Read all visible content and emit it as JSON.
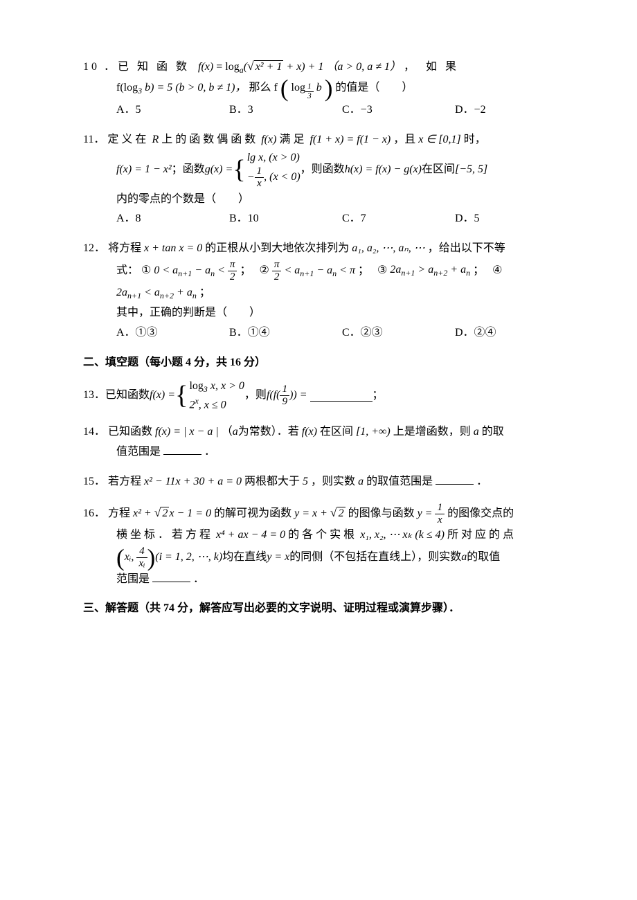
{
  "q10": {
    "num": "10",
    "pre": "．",
    "lead": "已知函数",
    "func_lhs": "f(x)",
    "func_rhs_pre": "= log",
    "log_base": "a",
    "arg_open": "(",
    "sqrt_inner": "x² + 1",
    "after_sqrt": " + x) + 1",
    "cond1": "（a > 0, a ≠ 1）",
    "tail1": "，",
    "lead2": "如果",
    "line2_pre": "f(log",
    "line2_base": "3",
    "line2_arg": " b) = 5 (b > 0, b ≠ 1)，",
    "line2_mid": "那么 f",
    "big_open": "(",
    "inner_log": "log",
    "inner_base_n": "1",
    "inner_base_d": "3",
    "inner_arg": " b",
    "big_close": ")",
    "line2_tail": "的值是（　　）",
    "optA": "A．5",
    "optB": "B．3",
    "optC": "C．−3",
    "optD": "D．−2"
  },
  "q11": {
    "num": "11．",
    "t1": "定义在",
    "t_R": "R",
    "t2": "上的函数偶函数",
    "t_fx": "f(x)",
    "t3": "满足",
    "t_eq": "f(1 + x) = f(1 − x)",
    "t4": "，且",
    "t_in": "x ∈ [0,1]",
    "t5": "时，",
    "l2_a": "f(x) = 1 − x²",
    "l2_b": "；函数",
    "l2_g": "g(x) = ",
    "case1": "lg x, (x > 0)",
    "case2_pre": "−",
    "case2_frac_n": "1",
    "case2_frac_d": "x",
    "case2_post": ", (x < 0)",
    "l2_c": "，则函数",
    "l2_h": "h(x) = f(x) − g(x)",
    "l2_d": "在区间",
    "l2_int": "[−5, 5]",
    "l3": "内的零点的个数是（　　）",
    "optA": "A．8",
    "optB": "B．10",
    "optC": "C．7",
    "optD": "D．5"
  },
  "q12": {
    "num": "12．",
    "t1": "将方程",
    "eq": "x + tan x = 0",
    "t2": "的正根从小到大地依次排列为",
    "seq": "a₁, a₂, ⋯, aₙ, ⋯",
    "t3": "，给出以下不等",
    "l2_a": "式：",
    "i1_lab": "①",
    "i1_body_pre": "0 < a",
    "i1_sub1": "n+1",
    "i1_mid": " − a",
    "i1_sub2": "n",
    "i1_lt": " < ",
    "pi_n": "π",
    "two": "2",
    "sep": "；",
    "i2_lab": "②",
    "i2_body_mid": " < a",
    "i2_sub1": "n+1",
    "i2_mid2": " − a",
    "i2_sub2": "n",
    "i2_tail": " < π",
    "i3_lab": "③",
    "i3_pre": "2a",
    "i3_sub1": "n+1",
    "i3_mid": " > a",
    "i3_sub2": "n+2",
    "i3_plus": " + a",
    "i3_sub3": "n",
    "i4_lab": "④",
    "i4_pre": "2a",
    "i4_sub1": "n+1",
    "i4_mid": " < a",
    "i4_sub2": "n+2",
    "i4_plus": " + a",
    "i4_sub3": "n",
    "l4": "其中，正确的判断是（　　）",
    "optA": "A．①③",
    "optB": "B．①④",
    "optC": "C．②③",
    "optD": "D．②④"
  },
  "sec2": "二、填空题（每小题 4 分，共 16 分）",
  "q13": {
    "num": "13．",
    "t1": "已知函数",
    "lhs": "f(x) = ",
    "case1_a": "log",
    "case1_b": "3",
    "case1_c": " x, x > 0",
    "case2_a": "2",
    "case2_b": "x",
    "case2_c": ", x ≤ 0",
    "t2": "，则",
    "expr_pre": "f(f(",
    "frac_n": "1",
    "frac_d": "9",
    "expr_post": ")) =",
    "tail": "；"
  },
  "q14": {
    "num": "14．",
    "t1": "已知函数",
    "fx": "f(x) = | x − a |",
    "t2": "（",
    "a": "a",
    "t3": "为常数）．若",
    "fx2": "f(x)",
    "t4": "在区间",
    "int": "[1, +∞)",
    "t5": "上是增函数，则",
    "a2": "a",
    "t6": "的取",
    "l2": "值范围是",
    "period": "．"
  },
  "q15": {
    "num": "15．",
    "t1": "若方程",
    "eq": "x² − 11x + 30 + a = 0",
    "t2": "两根都大于",
    "five": "5",
    "t3": "，则实数",
    "a": "a",
    "t4": "的取值范围是",
    "period": "．"
  },
  "q16": {
    "num": "16．",
    "t1": "方程",
    "eq1_a": "x² + ",
    "sqrt2": "2",
    "eq1_b": "x − 1 = 0",
    "t2": "的解可视为函数",
    "y1_a": "y = x + ",
    "t3": " 的图像与函数",
    "y2_a": "y = ",
    "y2_n": "1",
    "y2_d": "x",
    "t4": " 的图像交点的",
    "l2a": "横坐标．若方程",
    "eq2": "x⁴ + ax − 4 = 0",
    "l2b": "的各个实根",
    "roots": "x₁, x₂, ⋯ xₖ (k ≤ 4)",
    "l2c": "所对应的点",
    "pt_open": "(",
    "pt_x": "xᵢ",
    "pt_comma": ",",
    "pt_n": "4",
    "pt_d": "xᵢ",
    "pt_close": ")",
    "l3a": "(i = 1, 2, ⋯, k)",
    "l3b": "均在直线",
    "yx": "y = x",
    "l3c": "的同侧（不包括在直线上），则实数",
    "a": "a",
    "l3d": " 的取值",
    "l4": "范围是",
    "period": "．"
  },
  "sec3": "三、解答题（共 74 分，解答应写出必要的文字说明、证明过程或演算步骤）．"
}
